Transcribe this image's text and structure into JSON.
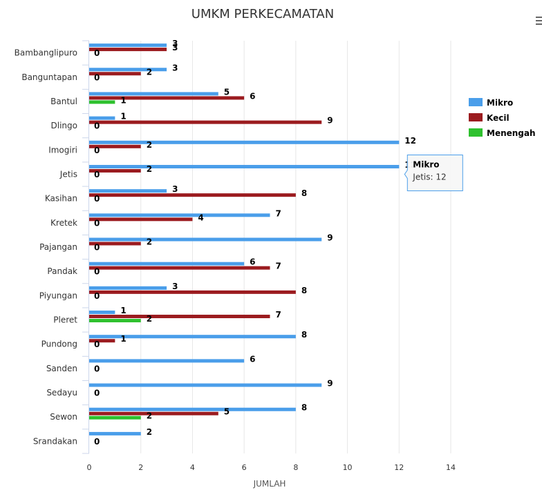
{
  "chart_data": {
    "type": "bar",
    "orientation": "horizontal",
    "title": "UMKM PERKECAMATAN",
    "xlabel": "JUMLAH",
    "ylabel": "",
    "xlim": [
      0,
      14
    ],
    "x_ticks": [
      "0",
      "2",
      "4",
      "6",
      "8",
      "10",
      "12",
      "14"
    ],
    "grid": true,
    "legend_position": "right",
    "categories": [
      "Bambanglipuro",
      "Banguntapan",
      "Bantul",
      "Dlingo",
      "Imogiri",
      "Jetis",
      "Kasihan",
      "Kretek",
      "Pajangan",
      "Pandak",
      "Piyungan",
      "Pleret",
      "Pundong",
      "Sanden",
      "Sedayu",
      "Sewon",
      "Srandakan"
    ],
    "series": [
      {
        "name": "Mikro",
        "color": "#4a9eea",
        "values": [
          3,
          3,
          5,
          1,
          12,
          12,
          3,
          7,
          9,
          6,
          3,
          1,
          8,
          6,
          9,
          8,
          2
        ]
      },
      {
        "name": "Kecil",
        "color": "#9b1b1f",
        "values": [
          3,
          2,
          6,
          9,
          2,
          2,
          8,
          4,
          2,
          7,
          8,
          7,
          1,
          null,
          null,
          5,
          null
        ]
      },
      {
        "name": "Menengah",
        "color": "#2ec12e",
        "values": [
          null,
          null,
          1,
          null,
          null,
          null,
          null,
          null,
          null,
          null,
          null,
          2,
          null,
          null,
          null,
          2,
          null
        ]
      }
    ],
    "zero_labels": [
      "0",
      "0",
      "",
      "0",
      "0",
      "0",
      "0",
      "0",
      "0",
      "0",
      "0",
      "",
      "0",
      "0",
      "0",
      "",
      "0"
    ],
    "tooltip": {
      "series": "Mikro",
      "category": "Jetis",
      "text": "Jetis: 12"
    }
  },
  "menu_icon": "hamburger-menu-icon"
}
